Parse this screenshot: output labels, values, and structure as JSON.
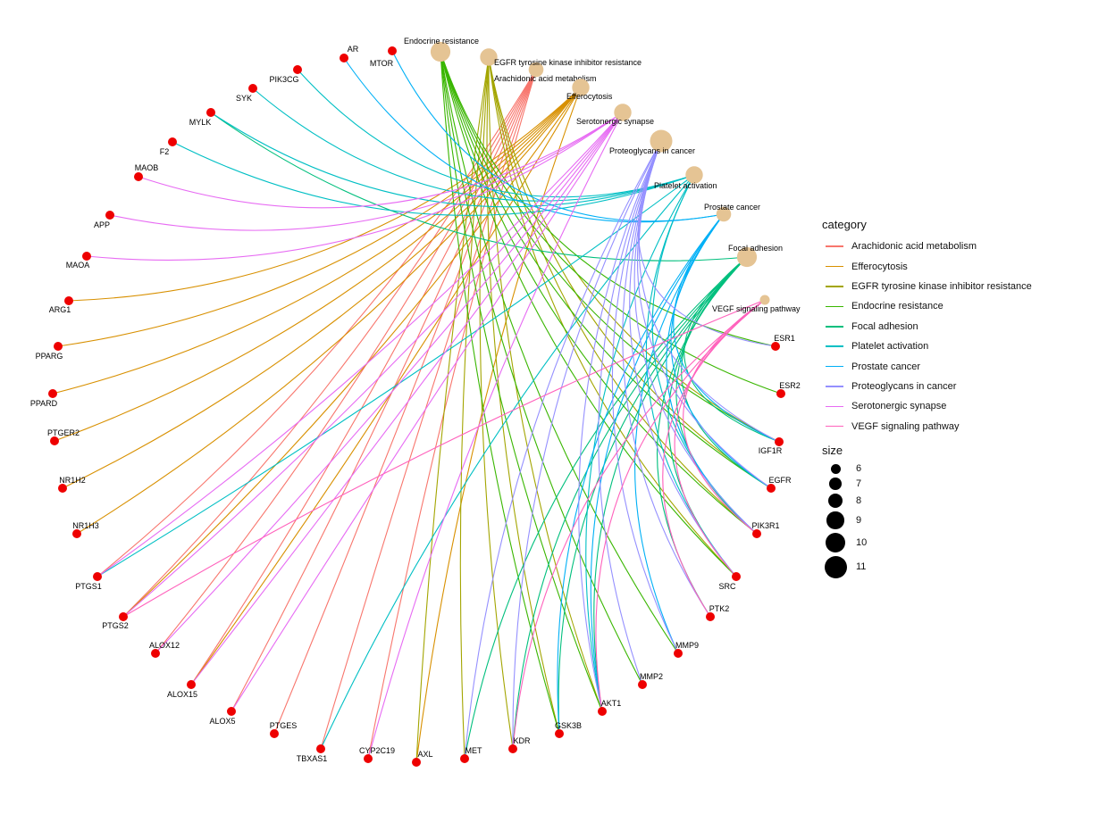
{
  "legend": {
    "category_title": "category",
    "size_title": "size",
    "size_values": [
      6,
      7,
      8,
      9,
      10,
      11
    ]
  },
  "categories": [
    {
      "name": "Arachidonic acid metabolism",
      "label": "Arachidonic acid metabolism",
      "color": "#F8766D",
      "size": 8
    },
    {
      "name": "Efferocytosis",
      "label": "Efferocytosis",
      "color": "#D89000",
      "size": 9
    },
    {
      "name": "EGFR tyrosine kinase inhibitor resistance",
      "label": "EGFR tyrosine kinase inhibitor resistance",
      "color": "#A3A500",
      "size": 9
    },
    {
      "name": "Endocrine resistance",
      "label": "Endocrine resistance",
      "color": "#39B600",
      "size": 10
    },
    {
      "name": "Focal adhesion",
      "label": "Focal adhesion",
      "color": "#00BF7D",
      "size": 10
    },
    {
      "name": "Platelet activation",
      "label": "Platelet activation",
      "color": "#00BFC4",
      "size": 9
    },
    {
      "name": "Prostate cancer",
      "label": "Prostate cancer",
      "color": "#00B0F6",
      "size": 8
    },
    {
      "name": "Proteoglycans in cancer",
      "label": "Proteoglycans in cancer",
      "color": "#9590FF",
      "size": 11
    },
    {
      "name": "Serotonergic synapse",
      "label": "Serotonergic synapse",
      "color": "#E76BF3",
      "size": 9
    },
    {
      "name": "VEGF signaling pathway",
      "label": "VEGF signaling pathway",
      "color": "#FF62BC",
      "size": 6
    }
  ],
  "gene_color": "#EE0000",
  "category_node_color": "#E5C494",
  "genes": [
    "AR",
    "MTOR",
    "PIK3CG",
    "SYK",
    "MYLK",
    "F2",
    "MAOB",
    "APP",
    "MAOA",
    "ARG1",
    "PPARG",
    "PPARD",
    "PTGER2",
    "NR1H2",
    "NR1H3",
    "PTGS1",
    "PTGS2",
    "ALOX12",
    "ALOX15",
    "ALOX5",
    "PTGES",
    "TBXAS1",
    "CYP2C19",
    "AXL",
    "MET",
    "KDR",
    "GSK3B",
    "AKT1",
    "MMP2",
    "MMP9",
    "PTK2",
    "SRC",
    "PIK3R1",
    "EGFR",
    "IGF1R",
    "ESR2",
    "ESR1"
  ],
  "edges": {
    "Arachidonic acid metabolism": [
      "PTGS1",
      "PTGS2",
      "ALOX12",
      "ALOX15",
      "ALOX5",
      "PTGES",
      "TBXAS1",
      "CYP2C19"
    ],
    "Efferocytosis": [
      "ARG1",
      "PPARG",
      "PPARD",
      "PTGER2",
      "NR1H2",
      "NR1H3",
      "PTGS2",
      "ALOX15",
      "AXL"
    ],
    "EGFR tyrosine kinase inhibitor resistance": [
      "AXL",
      "MET",
      "KDR",
      "GSK3B",
      "AKT1",
      "PIK3R1",
      "SRC",
      "EGFR",
      "IGF1R"
    ],
    "Endocrine resistance": [
      "ESR1",
      "ESR2",
      "IGF1R",
      "EGFR",
      "PIK3R1",
      "SRC",
      "AKT1",
      "GSK3B",
      "MMP2",
      "MMP9"
    ],
    "Focal adhesion": [
      "MYLK",
      "PIK3R1",
      "AKT1",
      "GSK3B",
      "EGFR",
      "IGF1R",
      "MET",
      "KDR",
      "SRC",
      "PTK2"
    ],
    "Platelet activation": [
      "MYLK",
      "F2",
      "SYK",
      "PIK3CG",
      "PTGS1",
      "TBXAS1",
      "SRC",
      "AKT1",
      "PIK3R1"
    ],
    "Prostate cancer": [
      "AR",
      "MTOR",
      "AKT1",
      "GSK3B",
      "PIK3R1",
      "EGFR",
      "IGF1R",
      "MMP9"
    ],
    "Proteoglycans in cancer": [
      "ESR1",
      "IGF1R",
      "EGFR",
      "PIK3R1",
      "SRC",
      "PTK2",
      "MMP9",
      "MMP2",
      "AKT1",
      "MET",
      "KDR"
    ],
    "Serotonergic synapse": [
      "MAOB",
      "APP",
      "MAOA",
      "ALOX12",
      "ALOX15",
      "ALOX5",
      "PTGS1",
      "PTGS2",
      "CYP2C19"
    ],
    "VEGF signaling pathway": [
      "KDR",
      "AKT1",
      "PTGS2",
      "PTK2",
      "SRC",
      "PIK3R1"
    ]
  }
}
